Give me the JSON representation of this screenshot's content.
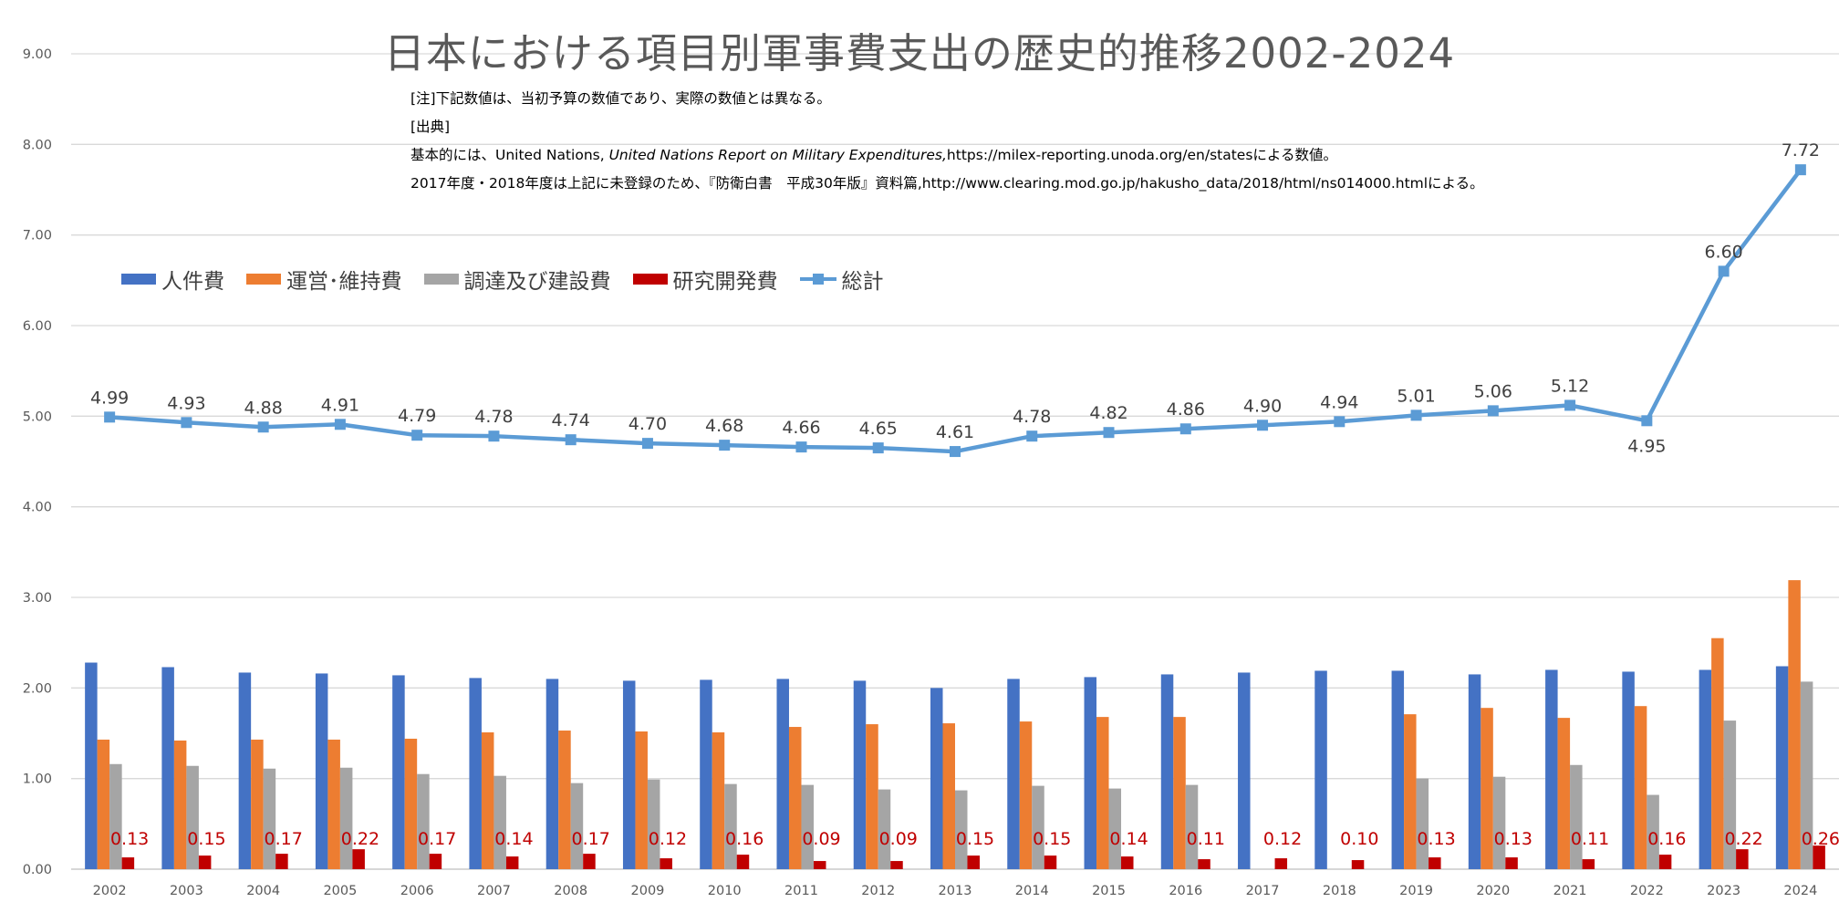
{
  "chart_data": {
    "type": "bar+line",
    "title": "日本における項目別軍事費支出の歴史的推移2002-2024",
    "notes": {
      "line1": "[注]下記数値は、当初予算の数値であり、実際の数値とは異なる。",
      "line2": "[出典]",
      "line3_pre": "基本的には、United Nations, ",
      "line3_ital": "United Nations Report on Military Expenditures,",
      "line3_post": "https://milex-reporting.unoda.org/en/statesによる数値。",
      "line4": "2017年度・2018年度は上記に未登録のため、『防衛白書　平成30年版』資料篇,http://www.clearing.mod.go.jp/hakusho_data/2018/html/ns014000.htmlによる。"
    },
    "categories": [
      "2002",
      "2003",
      "2004",
      "2005",
      "2006",
      "2007",
      "2008",
      "2009",
      "2010",
      "2011",
      "2012",
      "2013",
      "2014",
      "2015",
      "2016",
      "2017",
      "2018",
      "2019",
      "2020",
      "2021",
      "2022",
      "2023",
      "2024"
    ],
    "y_axis": {
      "min": 0,
      "max": 9,
      "step": 1,
      "tick_labels": [
        "0.00",
        "1.00",
        "2.00",
        "3.00",
        "4.00",
        "5.00",
        "6.00",
        "7.00",
        "8.00",
        "9.00"
      ]
    },
    "grid": true,
    "legend_position": "upper-left",
    "series": [
      {
        "name": "人件費",
        "type": "bar",
        "color": "#4472C4",
        "values": [
          2.28,
          2.23,
          2.17,
          2.16,
          2.14,
          2.11,
          2.1,
          2.08,
          2.09,
          2.1,
          2.08,
          2.0,
          2.1,
          2.12,
          2.15,
          2.17,
          2.19,
          2.19,
          2.15,
          2.2,
          2.18,
          2.2,
          2.24
        ]
      },
      {
        "name": "運営･維持費",
        "type": "bar",
        "color": "#ED7D31",
        "values": [
          1.43,
          1.42,
          1.43,
          1.43,
          1.44,
          1.51,
          1.53,
          1.52,
          1.51,
          1.57,
          1.6,
          1.61,
          1.63,
          1.68,
          1.68,
          null,
          null,
          1.71,
          1.78,
          1.67,
          1.8,
          2.55,
          3.19
        ]
      },
      {
        "name": "調達及び建設費",
        "type": "bar",
        "color": "#A5A5A5",
        "values": [
          1.16,
          1.14,
          1.11,
          1.12,
          1.05,
          1.03,
          0.95,
          0.99,
          0.94,
          0.93,
          0.88,
          0.87,
          0.92,
          0.89,
          0.93,
          null,
          null,
          1.0,
          1.02,
          1.15,
          0.82,
          1.64,
          2.07
        ]
      },
      {
        "name": "研究開発費",
        "type": "bar",
        "color": "#C00000",
        "values": [
          0.13,
          0.15,
          0.17,
          0.22,
          0.17,
          0.14,
          0.17,
          0.12,
          0.16,
          0.09,
          0.09,
          0.15,
          0.15,
          0.14,
          0.11,
          0.12,
          0.1,
          0.13,
          0.13,
          0.11,
          0.16,
          0.22,
          0.26
        ],
        "data_labels": [
          "0.13",
          "0.15",
          "0.17",
          "0.22",
          "0.17",
          "0.14",
          "0.17",
          "0.12",
          "0.16",
          "0.09",
          "0.09",
          "0.15",
          "0.15",
          "0.14",
          "0.11",
          "0.12",
          "0.10",
          "0.13",
          "0.13",
          "0.11",
          "0.16",
          "0.22",
          "0.26"
        ]
      },
      {
        "name": "総計",
        "type": "line",
        "color": "#5B9BD5",
        "values": [
          4.99,
          4.93,
          4.88,
          4.91,
          4.79,
          4.78,
          4.74,
          4.7,
          4.68,
          4.66,
          4.65,
          4.61,
          4.78,
          4.82,
          4.86,
          4.9,
          4.94,
          5.01,
          5.06,
          5.12,
          4.95,
          6.6,
          7.72
        ],
        "data_labels": [
          "4.99",
          "4.93",
          "4.88",
          "4.91",
          "4.79",
          "4.78",
          "4.74",
          "4.70",
          "4.68",
          "4.66",
          "4.65",
          "4.61",
          "4.78",
          "4.82",
          "4.86",
          "4.90",
          "4.94",
          "5.01",
          "5.06",
          "5.12",
          "4.95",
          "6.60",
          "7.72"
        ]
      }
    ]
  }
}
